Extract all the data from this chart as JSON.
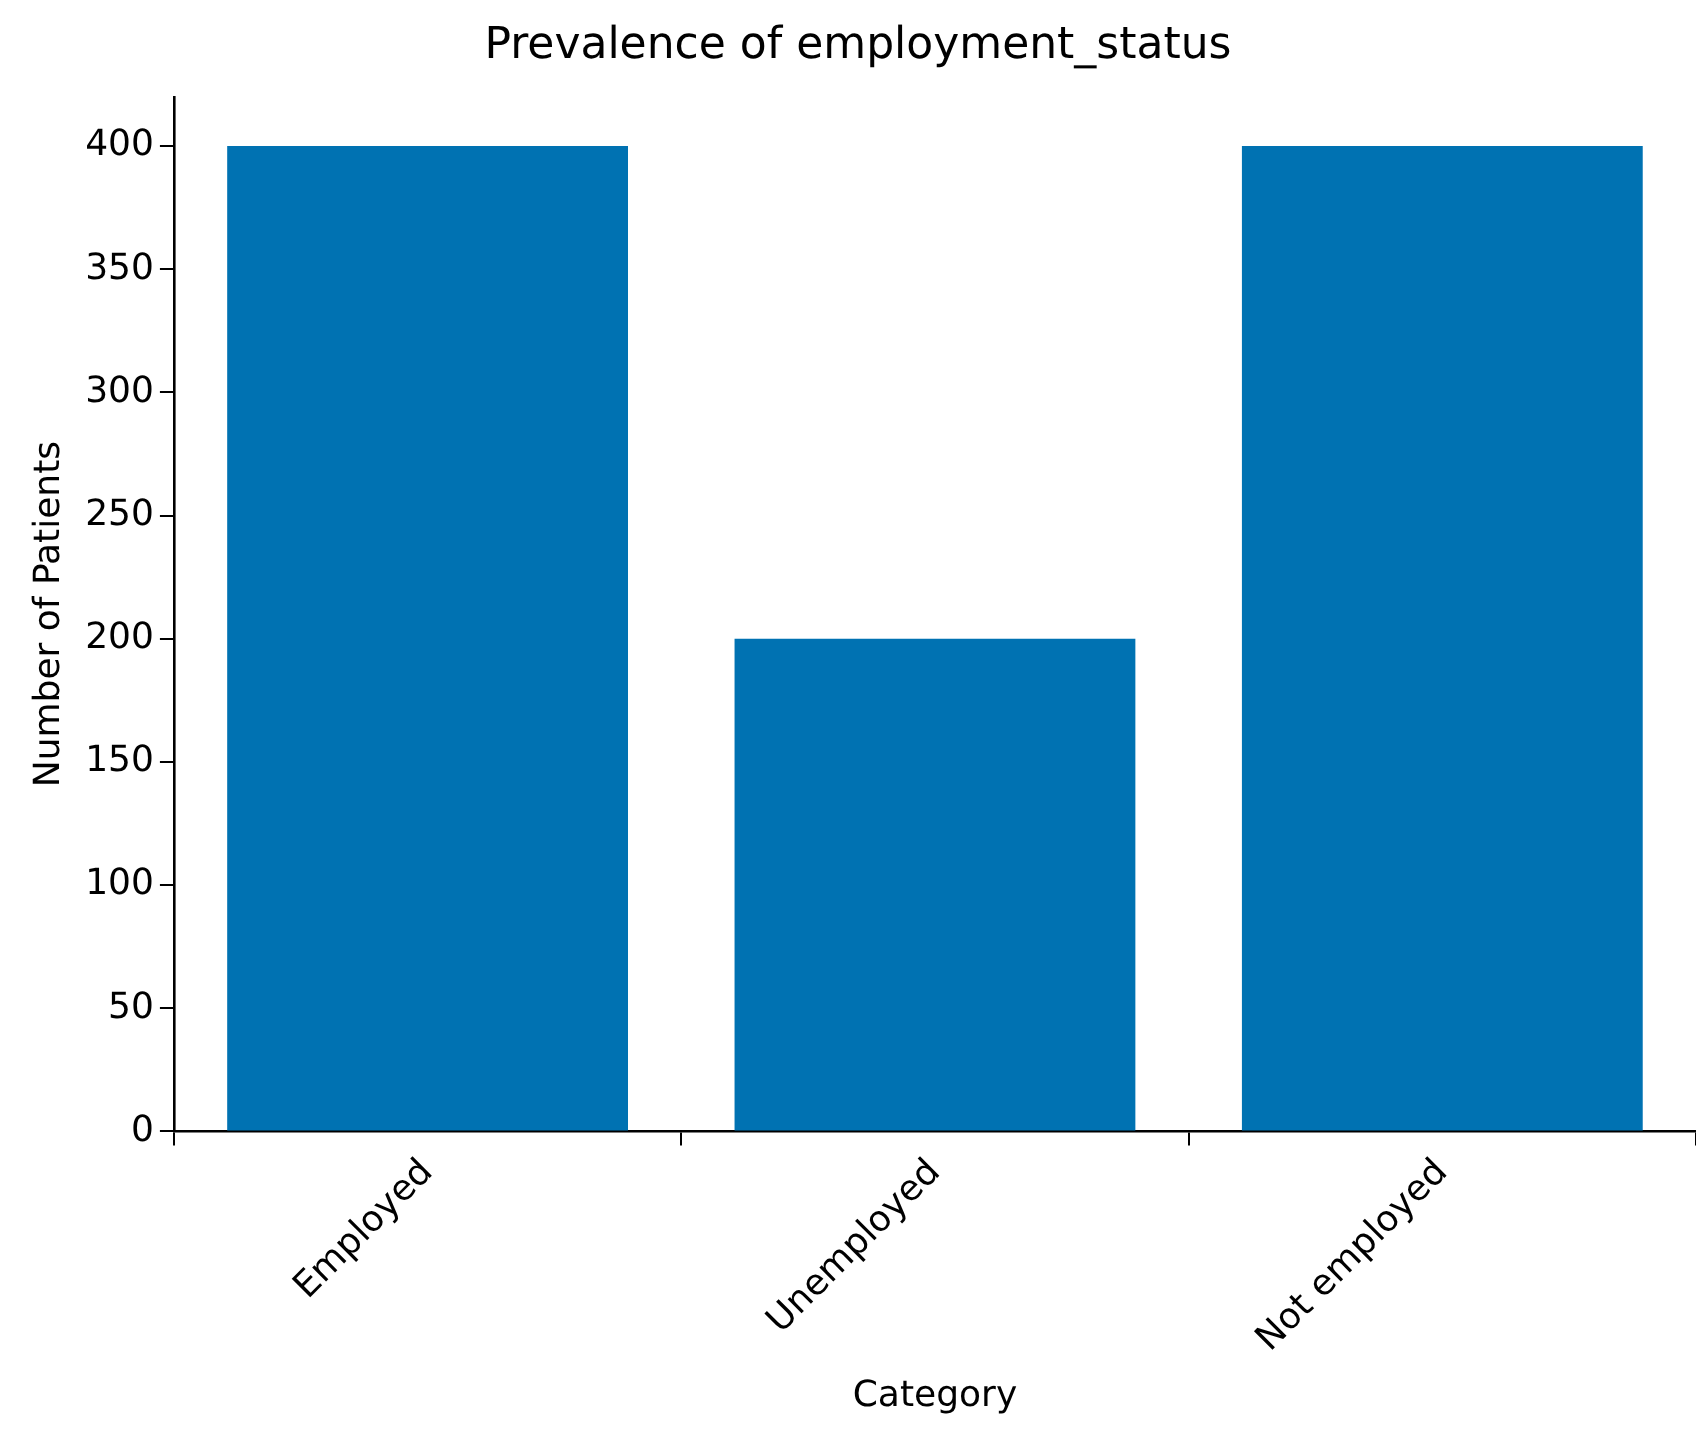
{
  "chart_data": {
    "type": "bar",
    "title": "Prevalence of employment_status",
    "xlabel": "Category",
    "ylabel": "Number of Patients",
    "categories": [
      "Employed",
      "Unemployed",
      "Not employed"
    ],
    "values": [
      400,
      200,
      400
    ],
    "color": "#0072b2",
    "ylim": [
      0,
      420
    ],
    "yticks": [
      0,
      50,
      100,
      150,
      200,
      250,
      300,
      350,
      400
    ],
    "grid": false,
    "legend": false
  }
}
